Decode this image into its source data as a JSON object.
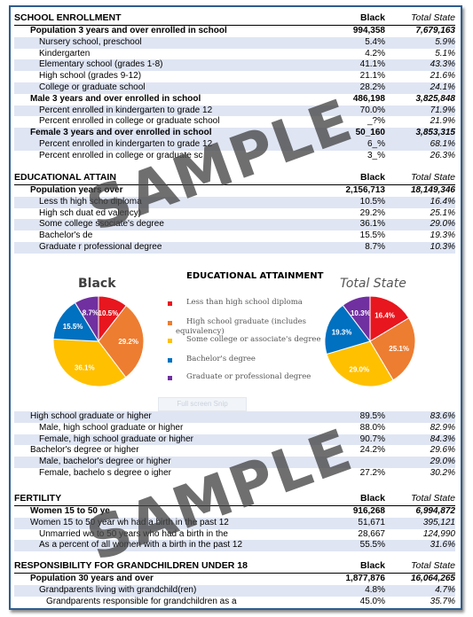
{
  "enrollment": {
    "title": "SCHOOL ENROLLMENT",
    "col_black": "Black",
    "col_state": "Total State",
    "rows": [
      {
        "label": "Population 3 years and over enrolled in school",
        "black": "994,358",
        "state": "7,679,163"
      },
      {
        "label": "Nursery school, preschool",
        "black": "5.4%",
        "state": "5.9%"
      },
      {
        "label": "Kindergarten",
        "black": "4.2%",
        "state": "5.1%"
      },
      {
        "label": "Elementary school (grades 1-8)",
        "black": "41.1%",
        "state": "43.3%"
      },
      {
        "label": "High school (grades 9-12)",
        "black": "21.1%",
        "state": "21.6%"
      },
      {
        "label": "College or graduate school",
        "black": "28.2%",
        "state": "24.1%"
      },
      {
        "label": "Male 3 years and over enrolled in school",
        "black": "486,198",
        "state": "3,825,848"
      },
      {
        "label": "Percent enrolled in kindergarten to grade 12",
        "black": "70.0%",
        "state": "71.9%"
      },
      {
        "label": "Percent enrolled in college or graduate school",
        "black": "_?%",
        "state": "21.9%"
      },
      {
        "label": "Female 3 years and over enrolled in school",
        "black": "50_160",
        "state": "3,853,315"
      },
      {
        "label": "Percent enrolled in kindergarten to grade 12",
        "black": "6_%",
        "state": "68.1%"
      },
      {
        "label": "Percent enrolled in college or graduate sc",
        "black": "3_%",
        "state": "26.3%"
      }
    ]
  },
  "education": {
    "title": "EDUCATIONAL ATTAIN",
    "col_black": "Black",
    "col_state": "Total State",
    "rows": [
      {
        "label": "Population  years  over",
        "black": "2,156,713",
        "state": "18,149,346"
      },
      {
        "label": "Less th   high scho  diploma",
        "black": "10.5%",
        "state": "16.4%"
      },
      {
        "label": "High sch  duat   ed  valency)",
        "black": "29.2%",
        "state": "25.1%"
      },
      {
        "label": "Some college   ssociate's degree",
        "black": "36.1%",
        "state": "29.0%"
      },
      {
        "label": "Bachelor's de",
        "black": "15.5%",
        "state": "19.3%"
      },
      {
        "label": "Graduate  r professional degree",
        "black": "8.7%",
        "state": "10.3%"
      }
    ]
  },
  "pies": {
    "title": "EDUCATIONAL ATTAINMENT",
    "black_label": "Black",
    "state_label": "Total State",
    "fullscreen_label": "Full screen Snip",
    "legend": [
      {
        "label": "Less than high school diploma",
        "color": "#e8161e"
      },
      {
        "label": "High school graduate (includes",
        "label2": "equivalency)",
        "color": "#ed7d31"
      },
      {
        "label": "Some college or associate's degree",
        "color": "#ffc000"
      },
      {
        "label": "Bachelor's degree",
        "color": "#0070c0"
      },
      {
        "label": "Graduate or professional degree",
        "color": "#7030a0"
      }
    ]
  },
  "chart_data": [
    {
      "type": "pie",
      "title": "Black",
      "categories": [
        "Less than high school diploma",
        "High school graduate (includes equivalency)",
        "Some college or associate's degree",
        "Bachelor's degree",
        "Graduate or professional degree"
      ],
      "values": [
        10.5,
        29.2,
        36.1,
        15.5,
        8.7
      ],
      "labels": [
        "10.5%",
        "29.2%",
        "36.1%",
        "15.5%",
        "8.7%"
      ],
      "colors": [
        "#e8161e",
        "#ed7d31",
        "#ffc000",
        "#0070c0",
        "#7030a0"
      ]
    },
    {
      "type": "pie",
      "title": "Total State",
      "categories": [
        "Less than high school diploma",
        "High school graduate (includes equivalency)",
        "Some college or associate's degree",
        "Bachelor's degree",
        "Graduate or professional degree"
      ],
      "values": [
        16.4,
        25.1,
        29.0,
        19.3,
        10.3
      ],
      "labels": [
        "16.4%",
        "25.1%",
        "29.0%",
        "19.3%",
        "10.3%"
      ],
      "colors": [
        "#e8161e",
        "#ed7d31",
        "#ffc000",
        "#0070c0",
        "#7030a0"
      ]
    }
  ],
  "graduates": {
    "rows": [
      {
        "label": "High school graduate or higher",
        "black": "89.5%",
        "state": "83.6%"
      },
      {
        "label": "Male, high school graduate or higher",
        "black": "88.0%",
        "state": "82.9%"
      },
      {
        "label": "Female, high school graduate or higher",
        "black": "90.7%",
        "state": "84.3%"
      },
      {
        "label": "Bachelor's degree or higher",
        "black": "24.2%",
        "state": "29.6%"
      },
      {
        "label": "Male, bachelor's degree or higher",
        "black": "",
        "state": "29.0%"
      },
      {
        "label": "Female, bachelo  s degree o   igher",
        "black": "27.2%",
        "state": "30.2%"
      }
    ]
  },
  "fertility": {
    "title": "FERTILITY",
    "col_black": "Black",
    "col_state": "Total State",
    "rows": [
      {
        "label": "Women 15 to 50 ye",
        "black": "916,268",
        "state": "6,994,872"
      },
      {
        "label": "Women 15 to 50 year  wh  had a birth in the past 12",
        "black": "51,671",
        "state": "395,121"
      },
      {
        "label": "Unmarried wo    to 50 years who had a birth in the",
        "black": "28,667",
        "state": "124,990"
      },
      {
        "label": "As a percent of all women with a birth in the past 12",
        "black": "55.5%",
        "state": "31.6%"
      }
    ]
  },
  "grandchildren": {
    "title": "RESPONSIBILITY FOR GRANDCHILDREN UNDER 18",
    "col_black": "Black",
    "col_state": "Total State",
    "rows": [
      {
        "label": "Population 30 years and over",
        "black": "1,877,876",
        "state": "16,064,265"
      },
      {
        "label": "Grandparents living with grandchild(ren)",
        "black": "4.8%",
        "state": "4.7%"
      },
      {
        "label": "Grandparents responsible for grandchildren as a",
        "black": "45.0%",
        "state": "35.7%"
      }
    ]
  },
  "watermark": "SAMPLE"
}
